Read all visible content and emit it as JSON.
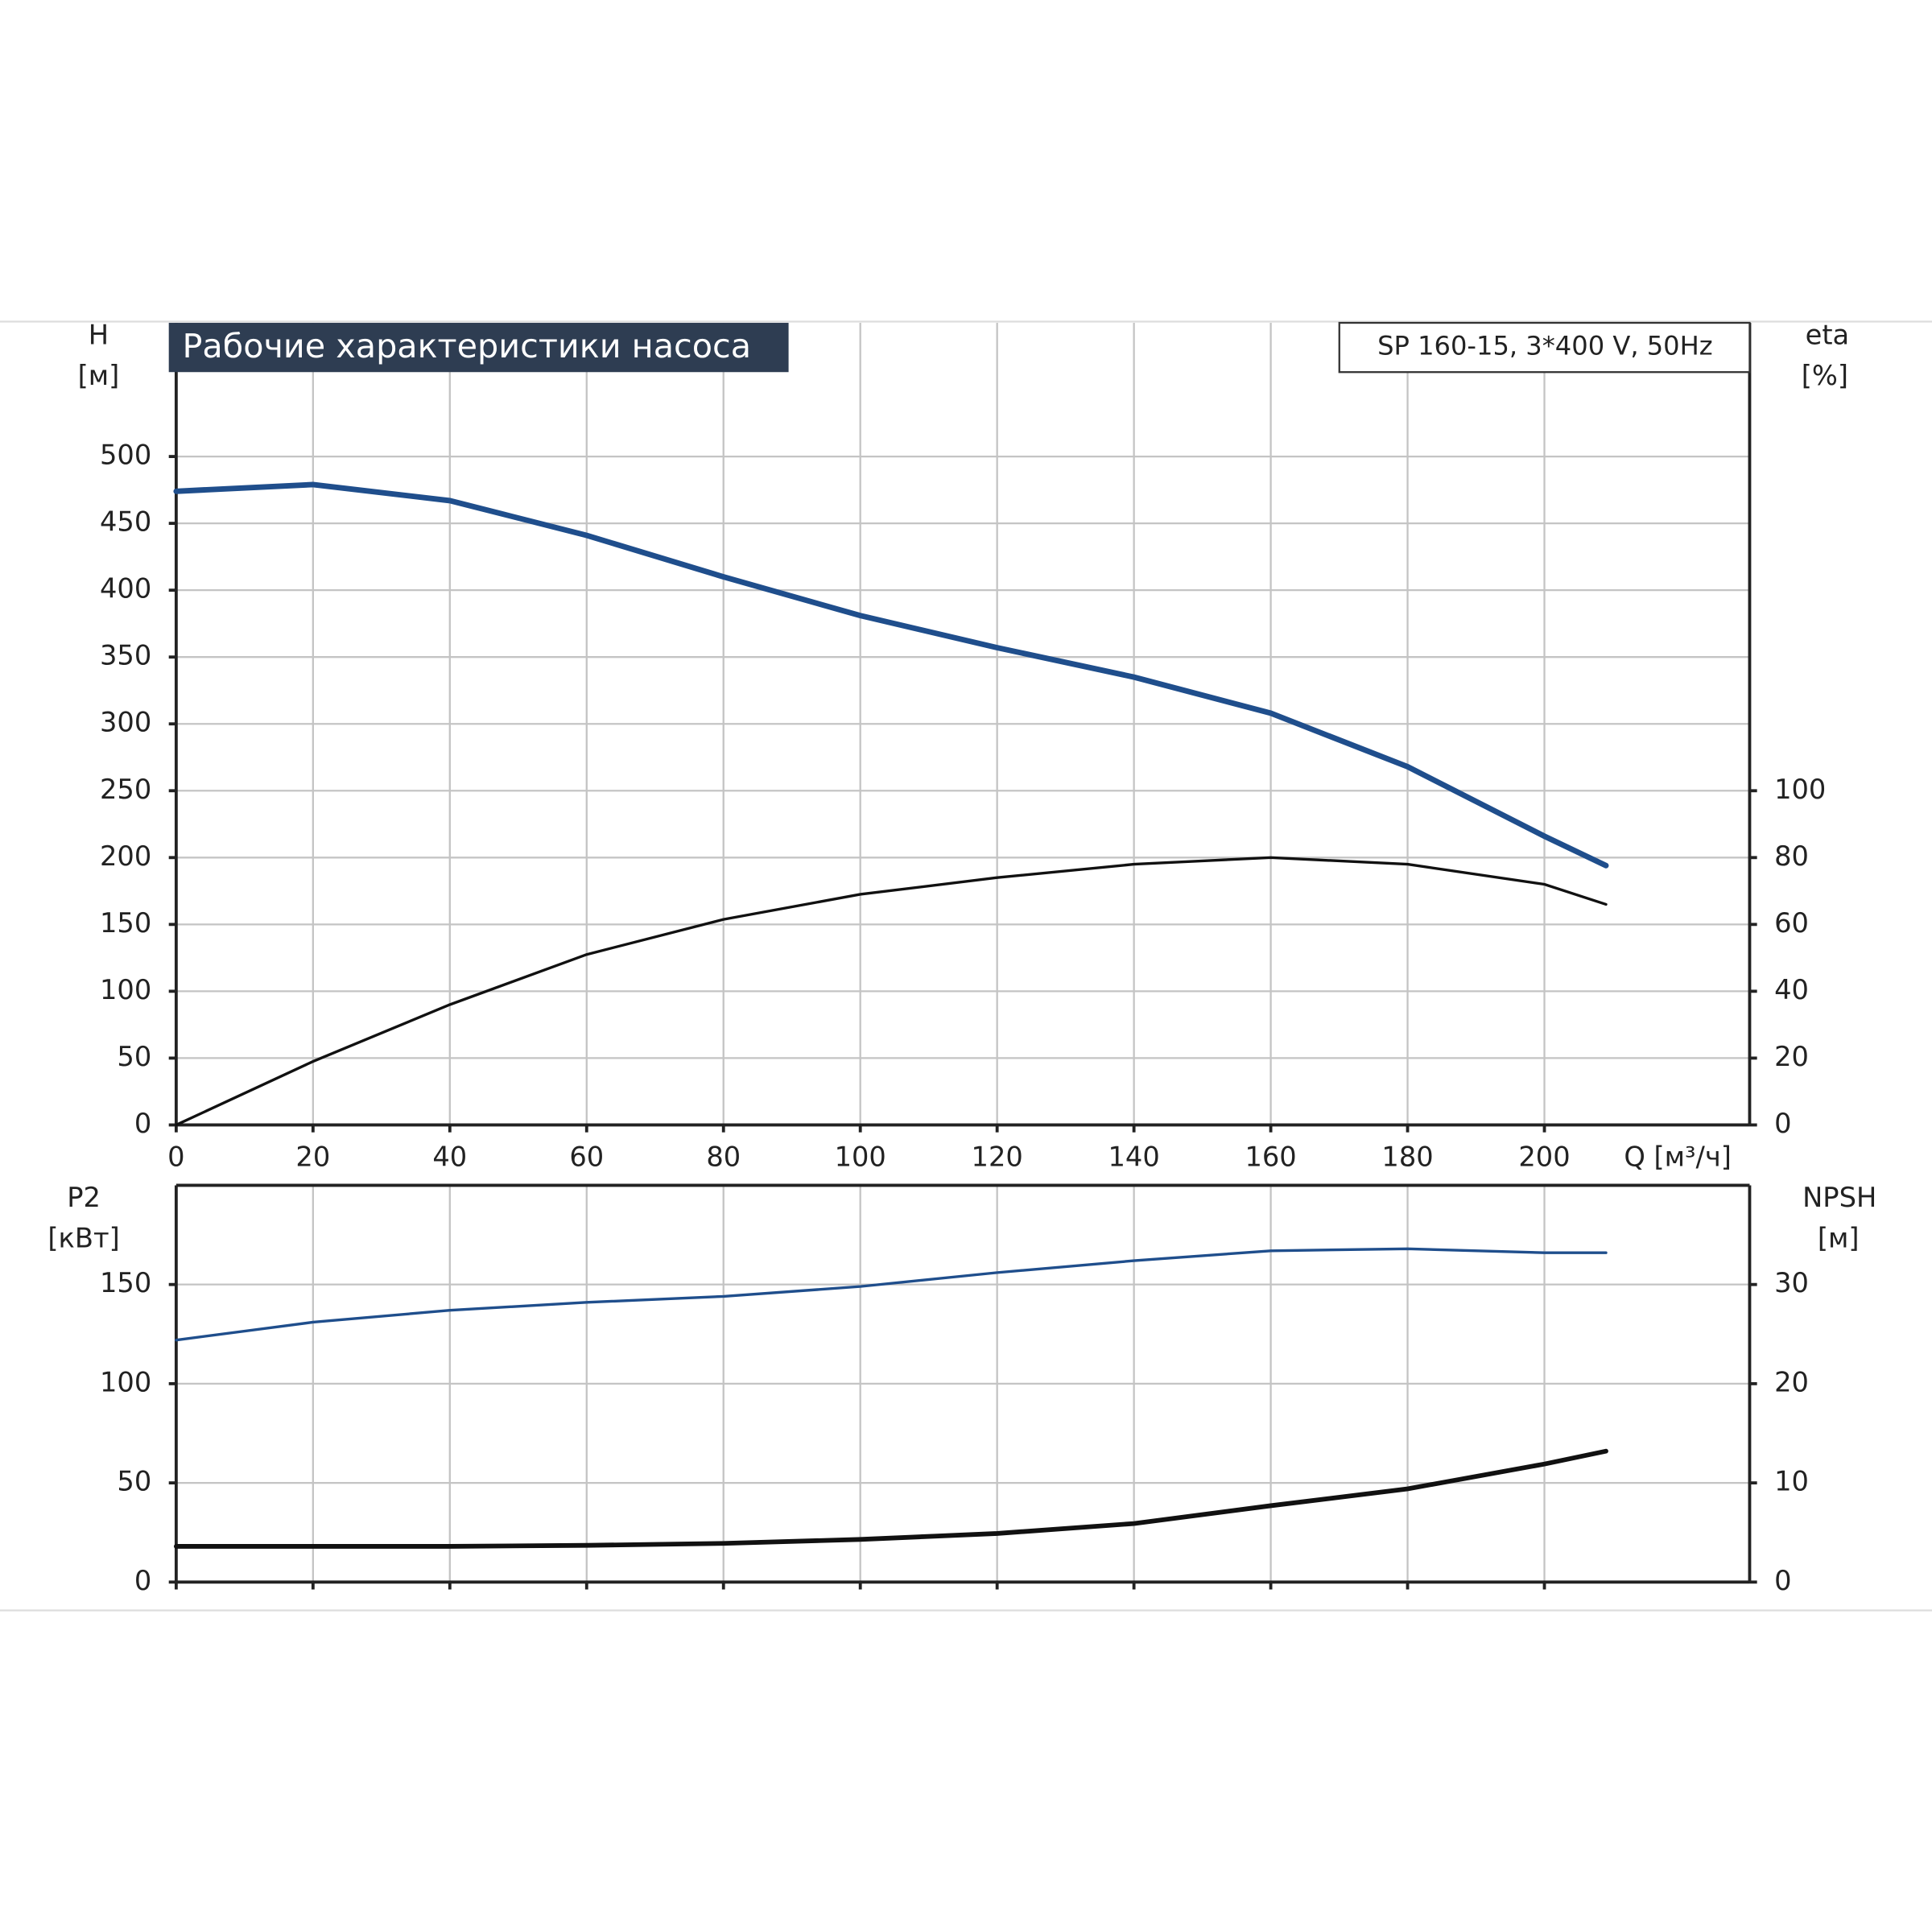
{
  "chart_data": [
    {
      "type": "line",
      "title": "Рабочие характеристики насоса",
      "subtitle": "SP 160-15, 3*400 V, 50Hz",
      "x_label": "Q [м³/ч]",
      "y_label": "H",
      "y_unit": "[м]",
      "y2_label": "eta",
      "y2_unit": "[%]",
      "xlim": [
        0,
        230
      ],
      "xticks": [
        0,
        20,
        40,
        60,
        80,
        100,
        120,
        140,
        160,
        180,
        200
      ],
      "ylim": [
        0,
        600
      ],
      "yticks": [
        0,
        50,
        100,
        150,
        200,
        250,
        300,
        350,
        400,
        450,
        500
      ],
      "y2lim": [
        0,
        240
      ],
      "y2ticks": [
        0,
        20,
        40,
        60,
        80,
        100
      ],
      "grid": true,
      "x": [
        0,
        20,
        40,
        60,
        80,
        100,
        120,
        140,
        160,
        180,
        200,
        209
      ],
      "series": [
        {
          "name": "H",
          "color": "#1f4e8c",
          "values": [
            474,
            479,
            467,
            441,
            410,
            381,
            357,
            335,
            308,
            268,
            216,
            194
          ]
        },
        {
          "name": "eta",
          "color": "#111111",
          "axis": "y2",
          "values": [
            0,
            19,
            36,
            51,
            61.5,
            69,
            74,
            78,
            80,
            78,
            72,
            66
          ]
        }
      ]
    },
    {
      "type": "line",
      "y_label": "P2",
      "y_unit": "[кВт]",
      "y2_label": "NPSH",
      "y2_unit": "[м]",
      "xlim": [
        0,
        230
      ],
      "ylim": [
        0,
        200
      ],
      "yticks": [
        0,
        50,
        100,
        150
      ],
      "y2lim": [
        0,
        40
      ],
      "y2ticks": [
        0,
        10,
        20,
        30
      ],
      "grid": true,
      "x": [
        0,
        20,
        40,
        60,
        80,
        100,
        120,
        140,
        160,
        180,
        200,
        209
      ],
      "series": [
        {
          "name": "P2",
          "color": "#1f4e8c",
          "values": [
            122,
            131,
            137,
            141,
            144,
            149,
            156,
            162,
            167,
            168,
            166,
            166
          ]
        },
        {
          "name": "NPSH",
          "color": "#111111",
          "axis": "y2",
          "values": [
            3.6,
            3.6,
            3.6,
            3.7,
            3.9,
            4.3,
            4.9,
            5.9,
            7.7,
            9.4,
            11.9,
            13.2
          ]
        }
      ]
    }
  ]
}
